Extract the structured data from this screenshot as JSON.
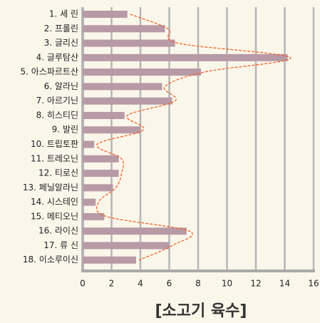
{
  "chart_data": {
    "type": "barh",
    "title": "[소고기 육수]",
    "categories": [
      "1. 세 린",
      "2. 프롤린",
      "3. 글리신",
      "4. 글루탐산",
      "5. 아스파르트산",
      "6. 알라닌",
      "7. 아르기닌",
      "8. 히스티딘",
      "9. 발린",
      "10. 트립토판",
      "11. 트레오닌",
      "12. 티로신",
      "13. 페닐알라닌",
      "14. 시스테인",
      "15. 메티오닌",
      "16. 라이신",
      "17. 류 신",
      "18. 이소루이신"
    ],
    "values": [
      3.1,
      5.7,
      6.4,
      14.2,
      8.2,
      5.5,
      6.2,
      2.9,
      4.0,
      0.8,
      2.5,
      2.5,
      2.1,
      0.9,
      1.5,
      7.2,
      6.0,
      3.7
    ],
    "color": "#b79aa6",
    "curve_color": "#f0642a",
    "xlim": [
      0,
      16
    ],
    "xticks": [
      0,
      2,
      4,
      6,
      8,
      10,
      12,
      14,
      16
    ],
    "grid": true
  }
}
